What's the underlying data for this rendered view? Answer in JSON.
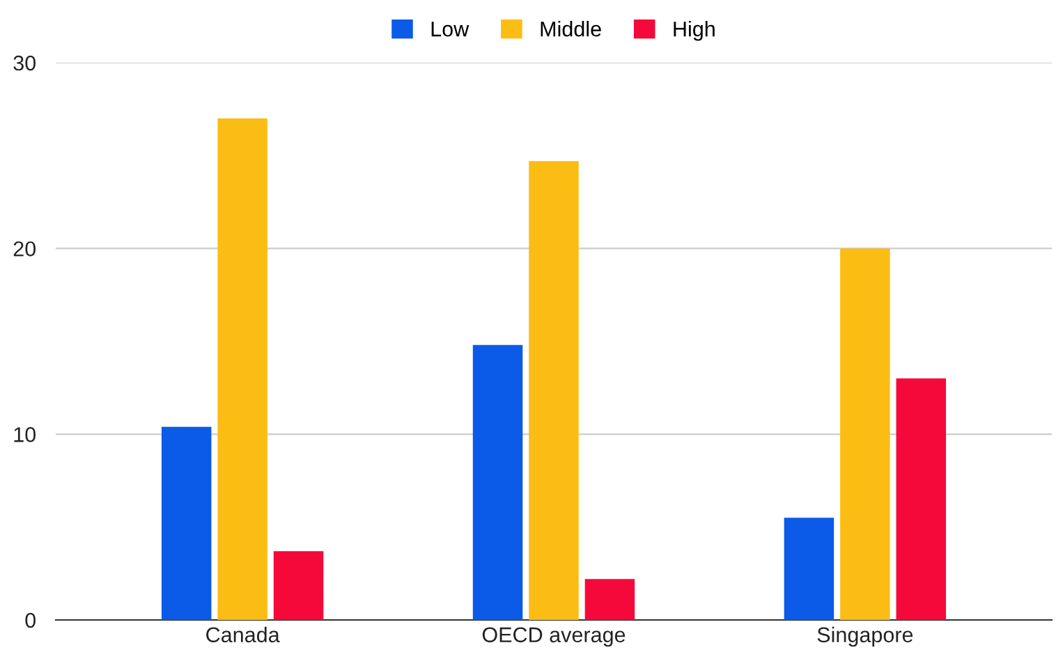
{
  "chart_data": {
    "type": "bar",
    "categories": [
      "Canada",
      "OECD average",
      "Singapore"
    ],
    "series": [
      {
        "name": "Low",
        "color": "#0b5be8",
        "values": [
          10.4,
          14.8,
          5.5
        ]
      },
      {
        "name": "Middle",
        "color": "#fbbc14",
        "values": [
          27.0,
          24.7,
          20.0
        ]
      },
      {
        "name": "High",
        "color": "#f5093a",
        "values": [
          3.7,
          2.2,
          13.0
        ]
      }
    ],
    "ylim": [
      0,
      30
    ],
    "yticks": [
      0,
      10,
      20,
      30
    ],
    "grid": "y",
    "legend": "top"
  }
}
